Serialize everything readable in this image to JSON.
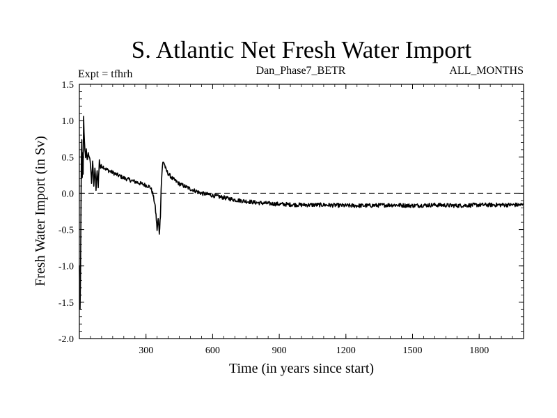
{
  "chart_data": {
    "type": "line",
    "title": "S. Atlantic Net Fresh Water Import",
    "subtitle_left": "Expt = tfhrh",
    "subtitle_center": "Dan_Phase7_BETR",
    "subtitle_right": "ALL_MONTHS",
    "xlabel": "Time (in years since start)",
    "ylabel": "Fresh Water Import (in Sv)",
    "xlim": [
      0,
      2000
    ],
    "ylim": [
      -2.0,
      1.5
    ],
    "x_ticks": [
      300,
      600,
      900,
      1200,
      1500,
      1800
    ],
    "y_ticks": [
      -2.0,
      -1.5,
      -1.0,
      -0.5,
      0.0,
      0.5,
      1.0,
      1.5
    ],
    "reference_line": {
      "y": 0.0,
      "style": "dashed"
    },
    "series": [
      {
        "name": "Net Fresh Water Import",
        "x": [
          0,
          3,
          5,
          7,
          9,
          11,
          13,
          15,
          17,
          19,
          21,
          23,
          25,
          28,
          31,
          35,
          40,
          45,
          50,
          55,
          60,
          65,
          70,
          75,
          80,
          85,
          90,
          95,
          100,
          110,
          120,
          140,
          160,
          180,
          200,
          220,
          240,
          260,
          280,
          300,
          310,
          320,
          330,
          340,
          345,
          350,
          355,
          360,
          365,
          368,
          372,
          376,
          380,
          385,
          390,
          400,
          420,
          450,
          500,
          550,
          600,
          650,
          700,
          750,
          800,
          900,
          1000,
          1100,
          1200,
          1300,
          1400,
          1500,
          1600,
          1700,
          1800,
          1900,
          2000
        ],
        "y": [
          -1.0,
          -1.6,
          -1.2,
          -0.4,
          0.5,
          0.75,
          0.2,
          0.55,
          0.25,
          1.05,
          0.85,
          0.7,
          0.6,
          0.5,
          0.6,
          0.45,
          0.55,
          0.5,
          0.4,
          0.15,
          0.45,
          0.1,
          0.35,
          0.05,
          0.3,
          0.1,
          0.45,
          0.35,
          0.38,
          0.36,
          0.33,
          0.3,
          0.27,
          0.24,
          0.21,
          0.19,
          0.17,
          0.15,
          0.13,
          0.11,
          0.1,
          0.08,
          0.0,
          -0.15,
          -0.3,
          -0.5,
          -0.35,
          -0.55,
          -0.3,
          0.05,
          0.3,
          0.42,
          0.43,
          0.38,
          0.32,
          0.27,
          0.2,
          0.13,
          0.06,
          0.0,
          -0.03,
          -0.06,
          -0.09,
          -0.11,
          -0.13,
          -0.15,
          -0.16,
          -0.16,
          -0.17,
          -0.17,
          -0.16,
          -0.17,
          -0.16,
          -0.17,
          -0.16,
          -0.16,
          -0.16
        ]
      }
    ]
  }
}
